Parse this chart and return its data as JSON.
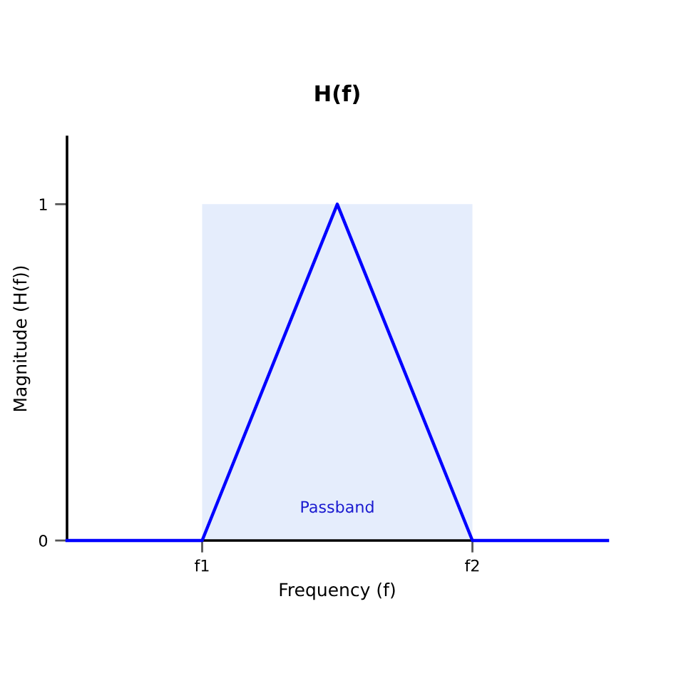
{
  "chart_data": {
    "type": "line",
    "title": "H(f)",
    "xlabel": "Frequency (f)",
    "ylabel": "Magnitude (H(f))",
    "categories": [
      null,
      "f1",
      null,
      "f2",
      null
    ],
    "series": [
      {
        "type": "area",
        "name": "Passband",
        "color": "#e5edfc",
        "values": [
          null,
          1,
          1,
          1,
          null
        ]
      },
      {
        "color": "#0000ff",
        "values": [
          0,
          0,
          1,
          0,
          0
        ]
      }
    ],
    "ylim": [
      0,
      1.2
    ],
    "yticks": [
      0,
      1
    ],
    "grid": false,
    "marker": "none",
    "line_style": "solid"
  }
}
